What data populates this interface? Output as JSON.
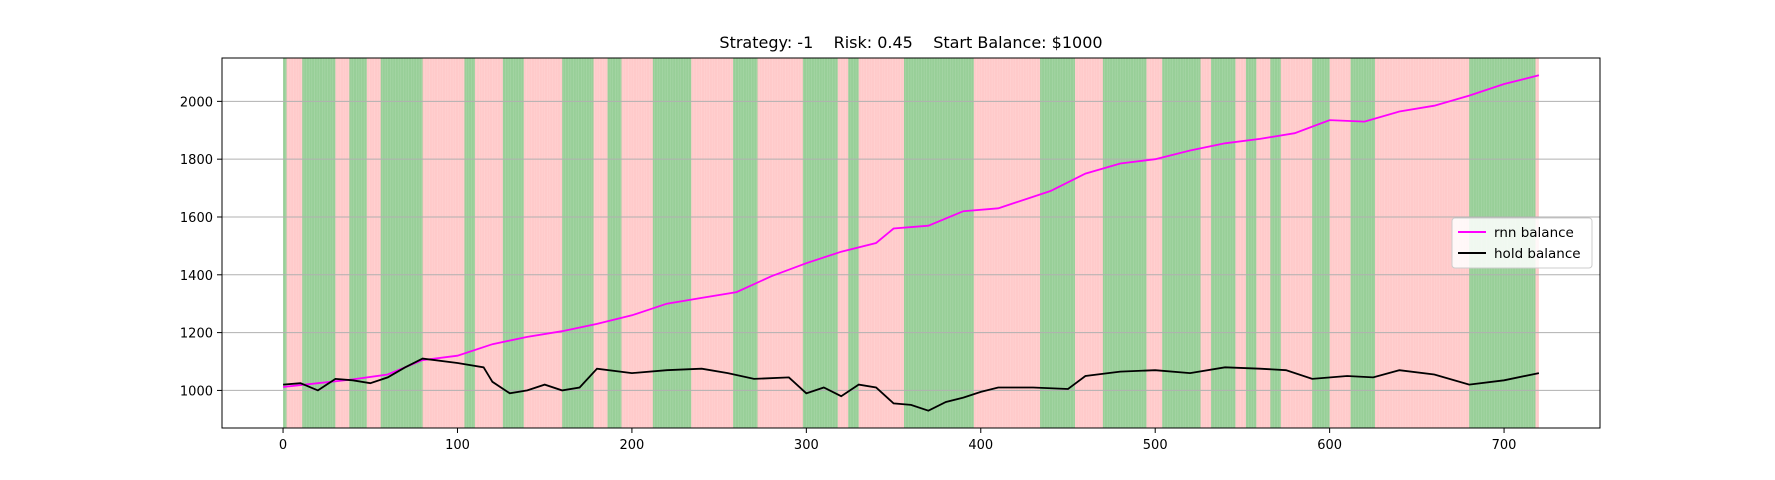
{
  "chart_data": {
    "type": "line",
    "title": "Strategy: -1    Risk: 0.45    Start Balance: $1000",
    "xlabel": "",
    "ylabel": "",
    "xlim": [
      -35,
      755
    ],
    "ylim": [
      870,
      2150
    ],
    "xticks": [
      0,
      100,
      200,
      300,
      400,
      500,
      600,
      700
    ],
    "yticks": [
      1000,
      1200,
      1400,
      1600,
      1800,
      2000
    ],
    "grid": {
      "y": true,
      "x": false
    },
    "legend": {
      "placement": "center-right"
    },
    "background_spans": {
      "description_colors": {
        "long": "#98cf98",
        "short": "#ffcaca"
      },
      "long_ranges": [
        [
          0,
          2
        ],
        [
          11,
          30
        ],
        [
          38,
          48
        ],
        [
          56,
          80
        ],
        [
          104,
          110
        ],
        [
          126,
          138
        ],
        [
          160,
          178
        ],
        [
          186,
          194
        ],
        [
          212,
          234
        ],
        [
          258,
          272
        ],
        [
          298,
          318
        ],
        [
          324,
          330
        ],
        [
          356,
          396
        ],
        [
          434,
          454
        ],
        [
          470,
          495
        ],
        [
          504,
          526
        ],
        [
          532,
          546
        ],
        [
          552,
          558
        ],
        [
          566,
          572
        ],
        [
          590,
          600
        ],
        [
          612,
          626
        ],
        [
          680,
          718
        ]
      ]
    },
    "series": [
      {
        "name": "rnn balance",
        "color": "#ff00ff",
        "points": [
          [
            0,
            1012
          ],
          [
            20,
            1025
          ],
          [
            40,
            1038
          ],
          [
            60,
            1055
          ],
          [
            80,
            1105
          ],
          [
            100,
            1120
          ],
          [
            120,
            1160
          ],
          [
            140,
            1185
          ],
          [
            160,
            1205
          ],
          [
            180,
            1230
          ],
          [
            200,
            1260
          ],
          [
            220,
            1300
          ],
          [
            240,
            1320
          ],
          [
            260,
            1340
          ],
          [
            280,
            1395
          ],
          [
            300,
            1440
          ],
          [
            320,
            1480
          ],
          [
            340,
            1510
          ],
          [
            350,
            1560
          ],
          [
            370,
            1570
          ],
          [
            390,
            1620
          ],
          [
            410,
            1630
          ],
          [
            420,
            1650
          ],
          [
            440,
            1690
          ],
          [
            460,
            1750
          ],
          [
            480,
            1785
          ],
          [
            500,
            1800
          ],
          [
            520,
            1830
          ],
          [
            540,
            1855
          ],
          [
            560,
            1870
          ],
          [
            580,
            1890
          ],
          [
            600,
            1935
          ],
          [
            620,
            1930
          ],
          [
            640,
            1965
          ],
          [
            660,
            1985
          ],
          [
            680,
            2020
          ],
          [
            700,
            2060
          ],
          [
            720,
            2090
          ]
        ]
      },
      {
        "name": "hold balance",
        "color": "#000000",
        "points": [
          [
            0,
            1020
          ],
          [
            10,
            1025
          ],
          [
            20,
            1000
          ],
          [
            30,
            1040
          ],
          [
            40,
            1035
          ],
          [
            50,
            1025
          ],
          [
            60,
            1045
          ],
          [
            70,
            1080
          ],
          [
            80,
            1110
          ],
          [
            100,
            1095
          ],
          [
            115,
            1080
          ],
          [
            120,
            1030
          ],
          [
            130,
            990
          ],
          [
            140,
            1000
          ],
          [
            150,
            1020
          ],
          [
            160,
            1000
          ],
          [
            170,
            1010
          ],
          [
            180,
            1075
          ],
          [
            200,
            1060
          ],
          [
            220,
            1070
          ],
          [
            240,
            1075
          ],
          [
            255,
            1060
          ],
          [
            270,
            1040
          ],
          [
            290,
            1045
          ],
          [
            300,
            990
          ],
          [
            310,
            1010
          ],
          [
            320,
            980
          ],
          [
            330,
            1020
          ],
          [
            340,
            1010
          ],
          [
            350,
            955
          ],
          [
            360,
            950
          ],
          [
            370,
            930
          ],
          [
            380,
            960
          ],
          [
            390,
            975
          ],
          [
            400,
            995
          ],
          [
            410,
            1010
          ],
          [
            430,
            1010
          ],
          [
            450,
            1005
          ],
          [
            460,
            1050
          ],
          [
            480,
            1065
          ],
          [
            500,
            1070
          ],
          [
            520,
            1060
          ],
          [
            540,
            1080
          ],
          [
            560,
            1075
          ],
          [
            575,
            1070
          ],
          [
            590,
            1040
          ],
          [
            610,
            1050
          ],
          [
            625,
            1045
          ],
          [
            640,
            1070
          ],
          [
            660,
            1055
          ],
          [
            680,
            1020
          ],
          [
            700,
            1035
          ],
          [
            720,
            1060
          ]
        ]
      }
    ]
  }
}
